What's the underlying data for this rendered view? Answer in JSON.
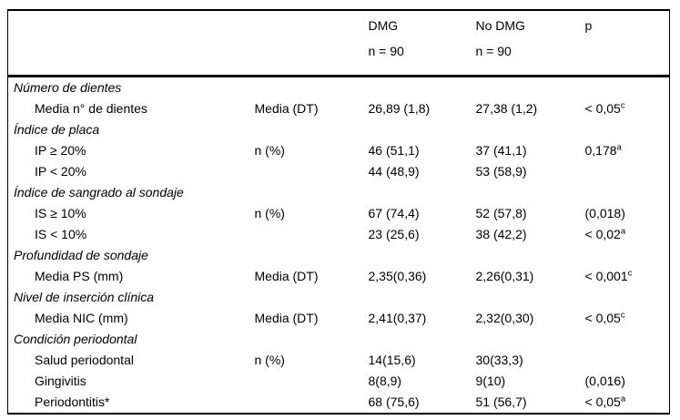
{
  "header": {
    "dmg": {
      "label": "DMG",
      "n": "n = 90"
    },
    "no_dmg": {
      "label": "No DMG",
      "n": "n = 90"
    },
    "p_label": "p"
  },
  "rows": [
    {
      "type": "section",
      "label": "Número de dientes"
    },
    {
      "type": "data",
      "label": "Media n° de dientes",
      "stat": "Media (DT)",
      "dmg": "26,89 (1,8)",
      "no_dmg": "27,38 (1,2)",
      "p": "< 0,05",
      "p_sup": "c"
    },
    {
      "type": "section",
      "label": "Índice de placa"
    },
    {
      "type": "data",
      "label": "IP ≥ 20%",
      "stat": "n (%)",
      "dmg": "46 (51,1)",
      "no_dmg": "37 (41,1)",
      "p": "0,178",
      "p_sup": "a"
    },
    {
      "type": "data",
      "label": "IP < 20%",
      "dmg": "44 (48,9)",
      "no_dmg": "53 (58,9)"
    },
    {
      "type": "section",
      "label": "Índice de sangrado al sondaje"
    },
    {
      "type": "data",
      "label": "IS ≥ 10%",
      "stat": "n (%)",
      "dmg": "67 (74,4)",
      "no_dmg": "52 (57,8)",
      "p": "(0,018)"
    },
    {
      "type": "data",
      "label": "IS < 10%",
      "dmg": "23 (25,6)",
      "no_dmg": "38 (42,2)",
      "p": "< 0,02",
      "p_sup": "a"
    },
    {
      "type": "section",
      "label": "Profundidad de sondaje"
    },
    {
      "type": "data",
      "label": "Media PS (mm)",
      "stat": "Media (DT)",
      "dmg": "2,35(0,36)",
      "no_dmg": "2,26(0,31)",
      "p": "< 0,001",
      "p_sup": "c"
    },
    {
      "type": "section",
      "label": "Nivel de inserción clínica"
    },
    {
      "type": "data",
      "label": "Media NIC (mm)",
      "stat": "Media (DT)",
      "dmg": "2,41(0,37)",
      "no_dmg": "2,32(0,30)",
      "p": "< 0,05",
      "p_sup": "c"
    },
    {
      "type": "section",
      "label": "Condición periodontal"
    },
    {
      "type": "data",
      "label": "Salud periodontal",
      "stat": "n (%)",
      "dmg": "14(15,6)",
      "no_dmg": "30(33,3)"
    },
    {
      "type": "data",
      "label": "Gingivitis",
      "dmg": "8(8,9)",
      "no_dmg": "9(10)",
      "p": "(0,016)"
    },
    {
      "type": "data",
      "label": "Periodontitis*",
      "dmg": "68 (75,6)",
      "no_dmg": "51 (56,7)",
      "p": "< 0,05",
      "p_sup": "a"
    }
  ],
  "colors": {
    "text": "#000000",
    "background": "#ffffff",
    "rule": "#000000"
  }
}
